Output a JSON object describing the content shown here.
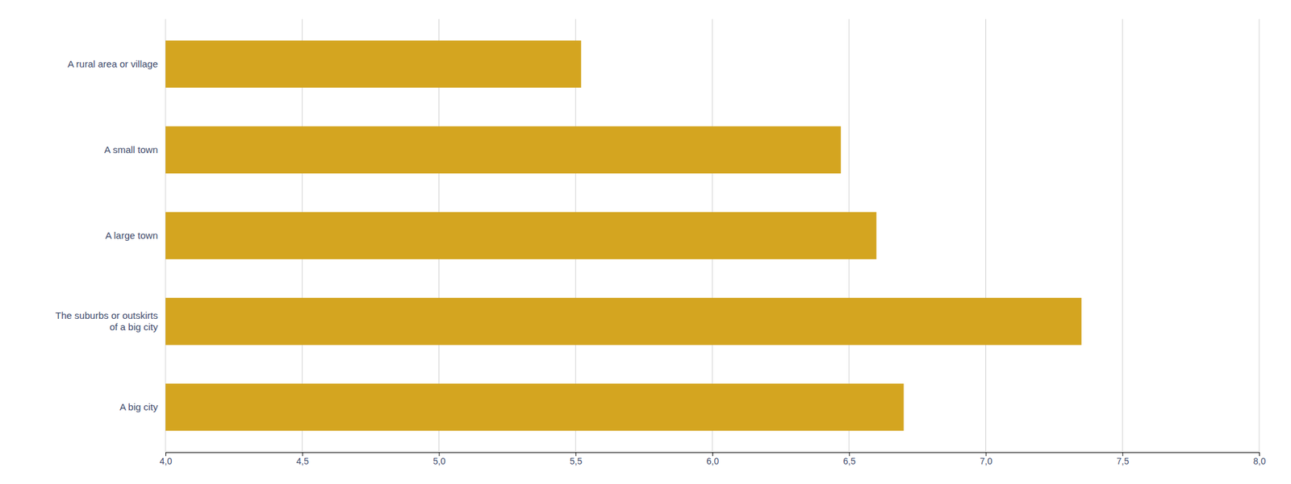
{
  "chart_data": {
    "type": "bar",
    "orientation": "horizontal",
    "categories": [
      "A big city",
      "The suburbs or outskirts\nof a big city",
      "A large town",
      "A small town",
      "A rural area or village"
    ],
    "values": [
      6.7,
      7.35,
      6.6,
      6.47,
      5.52
    ],
    "color": "#D4A520",
    "xlim": [
      4.0,
      8.0
    ],
    "xticks": [
      {
        "value": 4.0,
        "label": "4,0"
      },
      {
        "value": 4.5,
        "label": "4,5"
      },
      {
        "value": 5.0,
        "label": "5,0"
      },
      {
        "value": 5.5,
        "label": "5,5"
      },
      {
        "value": 6.0,
        "label": "6,0"
      },
      {
        "value": 6.5,
        "label": "6,5"
      },
      {
        "value": 7.0,
        "label": "7,0"
      },
      {
        "value": 7.5,
        "label": "7,5"
      },
      {
        "value": 8.0,
        "label": "8,0"
      }
    ],
    "grid": true
  }
}
